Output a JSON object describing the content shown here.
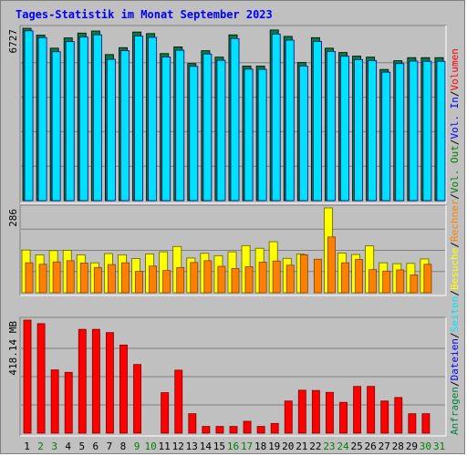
{
  "chart_data": {
    "type": "bar",
    "title": "Tages-Statistik im Monat September 2023",
    "categories": [
      "1",
      "2",
      "3",
      "4",
      "5",
      "6",
      "7",
      "8",
      "9",
      "10",
      "11",
      "12",
      "13",
      "14",
      "15",
      "16",
      "17",
      "18",
      "19",
      "20",
      "21",
      "22",
      "23",
      "24",
      "25",
      "26",
      "27",
      "28",
      "29",
      "30",
      "31"
    ],
    "weekend_days": [
      2,
      3,
      9,
      10,
      16,
      17,
      23,
      24,
      30,
      31
    ],
    "panels": [
      {
        "ymax_label": "6727",
        "ymax": 6727,
        "series": [
          {
            "name": "Anfragen",
            "color": "#008040",
            "values": [
              6727,
              6460,
              5950,
              6350,
              6540,
              6620,
              5700,
              5970,
              6580,
              6520,
              5740,
              6000,
              5350,
              5850,
              5600,
              6470,
              5250,
              5250,
              6660,
              6410,
              5390,
              6360,
              5950,
              5780,
              5640,
              5600,
              5120,
              5460,
              5580,
              5580,
              5580
            ]
          },
          {
            "name": "Dateien",
            "color": "#0000ff",
            "values": [
              6727,
              6460,
              5900,
              6300,
              6480,
              6570,
              5600,
              5940,
              6520,
              6470,
              5690,
              5960,
              5320,
              5810,
              5560,
              6420,
              5210,
              5200,
              6600,
              6360,
              5330,
              6310,
              5910,
              5720,
              5590,
              5550,
              5090,
              5430,
              5530,
              5520,
              5520
            ]
          },
          {
            "name": "Seiten",
            "color": "#00e0ff",
            "values": [
              6727,
              6460,
              5900,
              6300,
              6480,
              6570,
              5600,
              5940,
              6520,
              6470,
              5690,
              5960,
              5320,
              5810,
              5560,
              6420,
              5210,
              5200,
              6600,
              6360,
              5330,
              6310,
              5910,
              5720,
              5590,
              5550,
              5090,
              5430,
              5530,
              5520,
              5520
            ]
          }
        ]
      },
      {
        "ymax_label": "286",
        "ymax": 286,
        "series": [
          {
            "name": "Besuche",
            "color": "#ffff00",
            "values": [
              144,
              128,
              142,
              143,
              128,
              101,
              132,
              128,
              115,
              131,
              138,
              156,
              117,
              133,
              125,
              138,
              159,
              150,
              172,
              116,
              130,
              0,
              286,
              134,
              129,
              158,
              101,
              98,
              99,
              114,
              0
            ]
          },
          {
            "name": "Rechner",
            "color": "#ff8000",
            "values": [
              101,
              96,
              104,
              108,
              100,
              85,
              95,
              101,
              72,
              90,
              75,
              85,
              102,
              108,
              89,
              82,
              88,
              103,
              107,
              93,
              128,
              113,
              188,
              101,
              112,
              78,
              73,
              77,
              60,
              96,
              0
            ]
          }
        ]
      },
      {
        "ymax_label": "418.14 MB",
        "ymax": 418.14,
        "series": [
          {
            "name": "Vol. Out",
            "color": "#008000",
            "values": []
          },
          {
            "name": "Vol. In",
            "color": "#0000ff",
            "values": []
          },
          {
            "name": "Volumen",
            "color": "#ff0000",
            "values": [
              418.14,
              405.0,
              234.0,
              225.0,
              384.0,
              384.0,
              372.0,
              326.0,
              254.0,
              0,
              150.0,
              233.0,
              72.0,
              25.0,
              25.0,
              25.0,
              44.0,
              25.0,
              36.0,
              119.0,
              159.0,
              158.0,
              151.0,
              114.0,
              173.0,
              173.0,
              119.0,
              132.0,
              72.0,
              72.0,
              0
            ]
          }
        ]
      }
    ],
    "right_legend": [
      {
        "text": "Anfragen",
        "color": "#008040"
      },
      {
        "text": "/",
        "color": "#000000"
      },
      {
        "text": "Dateien",
        "color": "#0000ff"
      },
      {
        "text": "/",
        "color": "#000000"
      },
      {
        "text": "Seiten",
        "color": "#00e0ff"
      },
      {
        "text": "/",
        "color": "#000000"
      },
      {
        "text": "Besuche",
        "color": "#ffff00"
      },
      {
        "text": "/",
        "color": "#000000"
      },
      {
        "text": "Rechner",
        "color": "#ff8000"
      },
      {
        "text": "/",
        "color": "#000000"
      },
      {
        "text": "Vol. Out",
        "color": "#008000"
      },
      {
        "text": "/",
        "color": "#000000"
      },
      {
        "text": "Vol. In",
        "color": "#0000ff"
      },
      {
        "text": "/",
        "color": "#000000"
      },
      {
        "text": "Volumen",
        "color": "#ff0000"
      }
    ],
    "grid": true
  }
}
